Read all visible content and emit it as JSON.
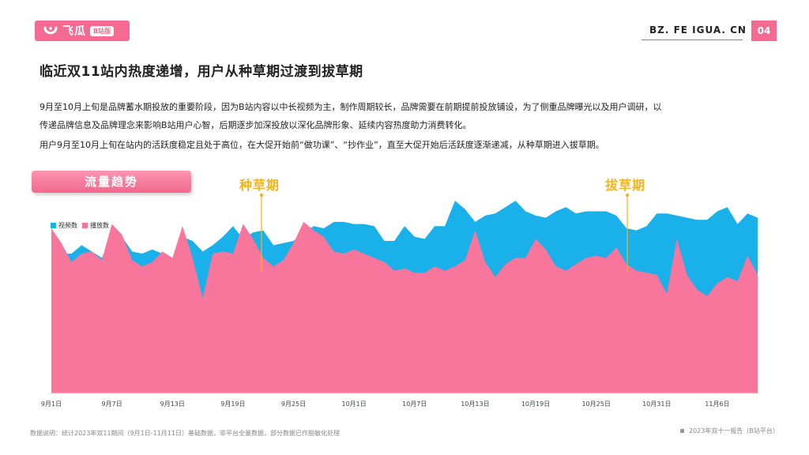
{
  "header": {
    "logo_text": "飞瓜",
    "logo_badge": "B站版",
    "site": "BZ. FE IGUA. CN",
    "page_number": "04",
    "brand_color": "#f46a92"
  },
  "page_title": "临近双11站内热度递增，用户从种草期过渡到拔草期",
  "paragraphs": [
    "9月至10月上旬是品牌蓄水期投放的重要阶段，因为B站内容以中长视频为主，制作周期较长，品牌需要在前期提前投放铺设，为了侧重品牌曝光以及用户调研，以",
    "传递品牌信息及品牌理念来影响B站用户心智，后期逐步加深投放以深化品牌形象、延续内容热度助力消费转化。",
    "用户9月至10月上旬在站内的活跃度稳定且处于高位，在大促开始前“做功课”、“抄作业”，直至大促开始后活跃度逐渐递减，从种草期进入拔草期。"
  ],
  "section_label": "流量趋势",
  "annotations": {
    "seeding": "种草期",
    "harvest": "拔草期",
    "color": "#f6b418"
  },
  "footnote": "数据说明：统计2023年双11期间（9月1日-11月11日）基础数据，非平台全量数据，部分数据已作脱敏化处理",
  "footer_right": "2023年双十一报告（B站平台）",
  "chart_data": {
    "type": "area",
    "x_tick_labels": [
      "9月1日",
      "9月7日",
      "9月13日",
      "9月19日",
      "9月25日",
      "10月1日",
      "10月7日",
      "10月13日",
      "10月19日",
      "10月25日",
      "10月31日",
      "11月6日"
    ],
    "x_tick_index": [
      0,
      6,
      12,
      18,
      24,
      30,
      36,
      42,
      48,
      54,
      60,
      66
    ],
    "ylim": [
      0,
      100
    ],
    "grid": false,
    "legend_position": "top-left",
    "series": [
      {
        "name": "视频数",
        "color": "#1ab0ea",
        "values": [
          78,
          66,
          66,
          70,
          67,
          64,
          75,
          74,
          67,
          66,
          68,
          66,
          64,
          74,
          72,
          67,
          70,
          74,
          79,
          73,
          76,
          77,
          70,
          71,
          72,
          76,
          79,
          78,
          81,
          81,
          80,
          80,
          79,
          72,
          72,
          79,
          74,
          73,
          79,
          79,
          91,
          87,
          81,
          84,
          85,
          88,
          91,
          86,
          84,
          83,
          86,
          88,
          85,
          86,
          86,
          86,
          84,
          78,
          77,
          79,
          85,
          85,
          84,
          83,
          82,
          82,
          86,
          88,
          80,
          85,
          83
        ]
      },
      {
        "name": "播放数",
        "color": "#f8759c",
        "values": [
          78,
          71,
          62,
          66,
          67,
          63,
          80,
          75,
          63,
          60,
          62,
          67,
          64,
          79,
          64,
          45,
          66,
          67,
          66,
          80,
          73,
          64,
          60,
          63,
          71,
          81,
          77,
          74,
          67,
          66,
          68,
          66,
          64,
          62,
          58,
          59,
          57,
          57,
          60,
          58,
          60,
          63,
          77,
          62,
          55,
          61,
          64,
          64,
          73,
          68,
          60,
          58,
          61,
          64,
          65,
          64,
          69,
          61,
          58,
          57,
          56,
          47,
          73,
          56,
          49,
          46,
          52,
          55,
          53,
          65,
          56
        ]
      }
    ]
  }
}
